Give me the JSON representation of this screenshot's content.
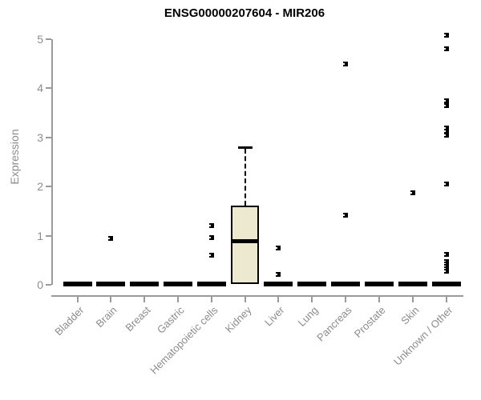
{
  "chart_data": {
    "type": "boxplot",
    "title": "ENSG00000207604 - MIR206",
    "ylabel": "Expression",
    "xlabel": "",
    "ylim": [
      0,
      5
    ],
    "yticks": [
      0,
      1,
      2,
      3,
      4,
      5
    ],
    "grid": false,
    "legend": "none",
    "colors": {
      "box_fill": "#EDE8D0",
      "box_stroke": "#000000",
      "axis_text": "#8C8C8C",
      "axis_line": "#9A9A9A",
      "title": "#000000",
      "background": "#FFFFFF"
    },
    "categories": [
      "Bladder",
      "Brain",
      "Breast",
      "Gastric",
      "Hematopoietic cells",
      "Kidney",
      "Liver",
      "Lung",
      "Pancreas",
      "Prostate",
      "Skin",
      "Unknown / Other"
    ],
    "series": [
      {
        "category": "Bladder",
        "q1": 0,
        "median": 0,
        "q3": 0,
        "whisker_low": 0,
        "whisker_high": 0,
        "outliers": []
      },
      {
        "category": "Brain",
        "q1": 0,
        "median": 0,
        "q3": 0,
        "whisker_low": 0,
        "whisker_high": 0,
        "outliers": [
          0.94
        ]
      },
      {
        "category": "Breast",
        "q1": 0,
        "median": 0,
        "q3": 0,
        "whisker_low": 0,
        "whisker_high": 0,
        "outliers": []
      },
      {
        "category": "Gastric",
        "q1": 0,
        "median": 0,
        "q3": 0,
        "whisker_low": 0,
        "whisker_high": 0,
        "outliers": []
      },
      {
        "category": "Hematopoietic cells",
        "q1": 0,
        "median": 0,
        "q3": 0,
        "whisker_low": 0,
        "whisker_high": 0,
        "outliers": [
          1.21,
          0.96,
          0.6
        ]
      },
      {
        "category": "Kidney",
        "q1": 0,
        "median": 0.88,
        "q3": 1.61,
        "whisker_low": 0,
        "whisker_high": 2.8,
        "outliers": []
      },
      {
        "category": "Liver",
        "q1": 0,
        "median": 0,
        "q3": 0,
        "whisker_low": 0,
        "whisker_high": 0,
        "outliers": [
          0.75,
          0.21
        ]
      },
      {
        "category": "Lung",
        "q1": 0,
        "median": 0,
        "q3": 0,
        "whisker_low": 0,
        "whisker_high": 0,
        "outliers": []
      },
      {
        "category": "Pancreas",
        "q1": 0,
        "median": 0,
        "q3": 0,
        "whisker_low": 0,
        "whisker_high": 0,
        "outliers": [
          4.5,
          1.42
        ]
      },
      {
        "category": "Prostate",
        "q1": 0,
        "median": 0,
        "q3": 0,
        "whisker_low": 0,
        "whisker_high": 0,
        "outliers": []
      },
      {
        "category": "Skin",
        "q1": 0,
        "median": 0,
        "q3": 0,
        "whisker_low": 0,
        "whisker_high": 0,
        "outliers": [
          1.88
        ]
      },
      {
        "category": "Unknown / Other",
        "q1": 0,
        "median": 0,
        "q3": 0,
        "whisker_low": 0,
        "whisker_high": 0,
        "outliers": [
          5.08,
          4.81,
          3.74,
          3.65,
          3.2,
          3.12,
          3.04,
          2.05,
          0.62,
          0.48,
          0.43,
          0.38,
          0.33,
          0.28
        ]
      }
    ]
  }
}
